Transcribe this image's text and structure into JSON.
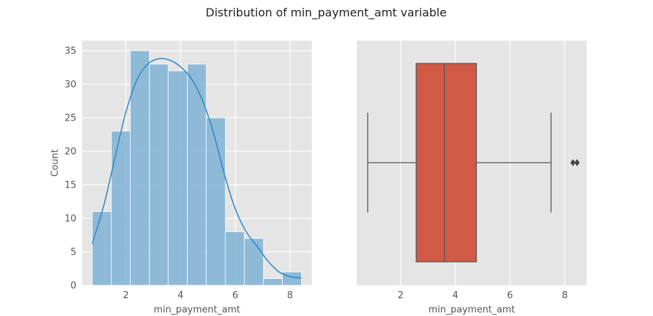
{
  "figure": {
    "title": "Distribution of min_payment_amt variable"
  },
  "chart_data": [
    {
      "type": "bar",
      "subtype": "histogram-with-kde",
      "xlabel": "min_payment_amt",
      "ylabel": "Count",
      "xlim": [
        0.4,
        8.8
      ],
      "ylim": [
        0,
        36.5
      ],
      "x_ticks": [
        2,
        4,
        6,
        8
      ],
      "y_ticks": [
        0,
        5,
        10,
        15,
        20,
        25,
        30,
        35
      ],
      "bin_edges": [
        0.77,
        1.47,
        2.16,
        2.86,
        3.55,
        4.25,
        4.94,
        5.64,
        6.33,
        7.03,
        7.72,
        8.42
      ],
      "counts": [
        11,
        23,
        35,
        33,
        32,
        33,
        25,
        8,
        7,
        1,
        2
      ],
      "bar_color": "#7fb3d5",
      "kde": {
        "x": [
          0.77,
          1.2,
          1.6,
          2.0,
          2.4,
          2.8,
          3.2,
          3.6,
          4.0,
          4.4,
          4.8,
          5.2,
          5.6,
          6.0,
          6.4,
          6.8,
          7.2,
          7.6,
          8.0,
          8.42
        ],
        "y": [
          6.2,
          12.0,
          19.0,
          25.8,
          30.6,
          33.0,
          33.8,
          33.6,
          32.6,
          30.8,
          27.6,
          22.8,
          16.6,
          11.4,
          8.0,
          5.8,
          3.6,
          2.0,
          1.3,
          1.1
        ]
      },
      "line_color": "#2e86c1",
      "grid": true,
      "background": "#e5e5e5"
    },
    {
      "type": "box",
      "orientation": "horizontal",
      "xlabel": "min_payment_amt",
      "xlim": [
        0.4,
        8.8
      ],
      "x_ticks": [
        2,
        4,
        6,
        8
      ],
      "whisker_low": 0.8,
      "q1": 2.57,
      "median": 3.6,
      "q3": 4.77,
      "whisker_high": 7.5,
      "outliers": [
        8.3,
        8.45
      ],
      "box_color": "#d15a47",
      "grid": true,
      "background": "#e5e5e5"
    }
  ]
}
